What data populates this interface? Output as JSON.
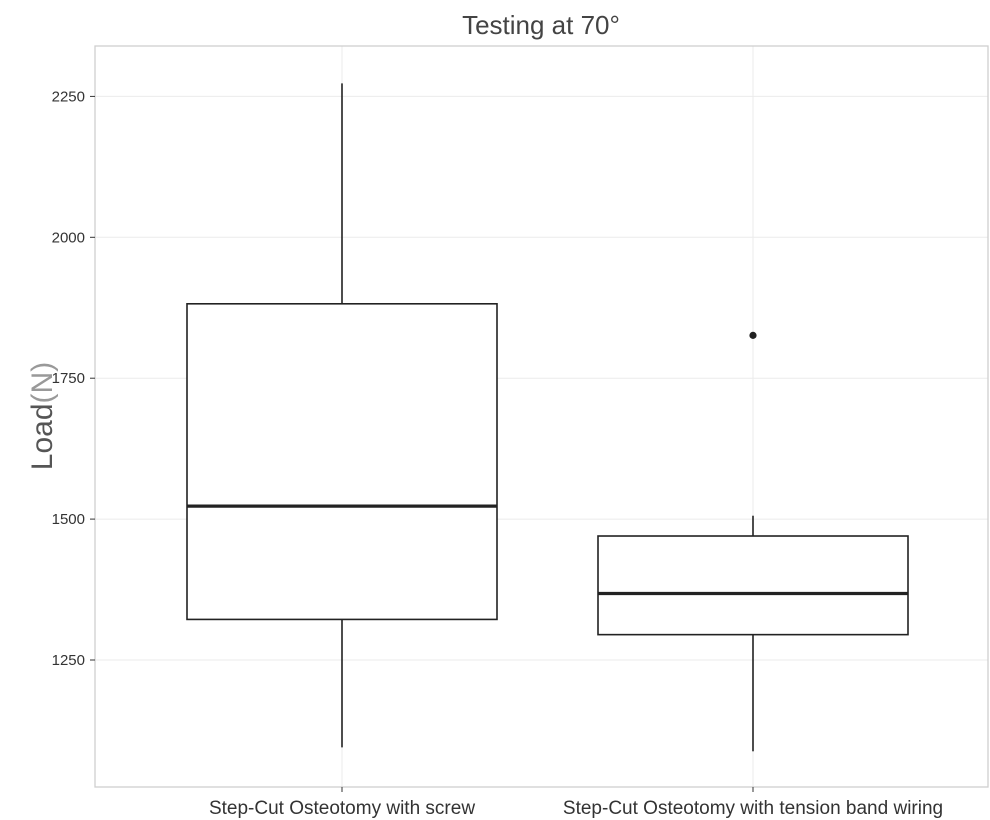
{
  "chart_data": {
    "type": "boxplot",
    "title": "Testing at 70°",
    "ylabel": "Load",
    "ylabel_unit": "(N)",
    "xlabel": "",
    "ylim": [
      1040,
      2330
    ],
    "yticks": [
      1250,
      1500,
      1750,
      2000,
      2250
    ],
    "ytick_labels": [
      "1250",
      "1500",
      "1750",
      "2000",
      "2250"
    ],
    "grid": true,
    "categories": [
      "Step-Cut Osteotomy with screw",
      "Step-Cut Osteotomy with tension band wiring"
    ],
    "boxes": [
      {
        "category": "Step-Cut Osteotomy with screw",
        "whisker_low": 1095,
        "q1": 1322,
        "median": 1523,
        "q3": 1882,
        "whisker_high": 2273,
        "outliers": []
      },
      {
        "category": "Step-Cut Osteotomy with tension band wiring",
        "whisker_low": 1088,
        "q1": 1295,
        "median": 1368,
        "q3": 1470,
        "whisker_high": 1506,
        "outliers": [
          1826
        ]
      }
    ]
  }
}
